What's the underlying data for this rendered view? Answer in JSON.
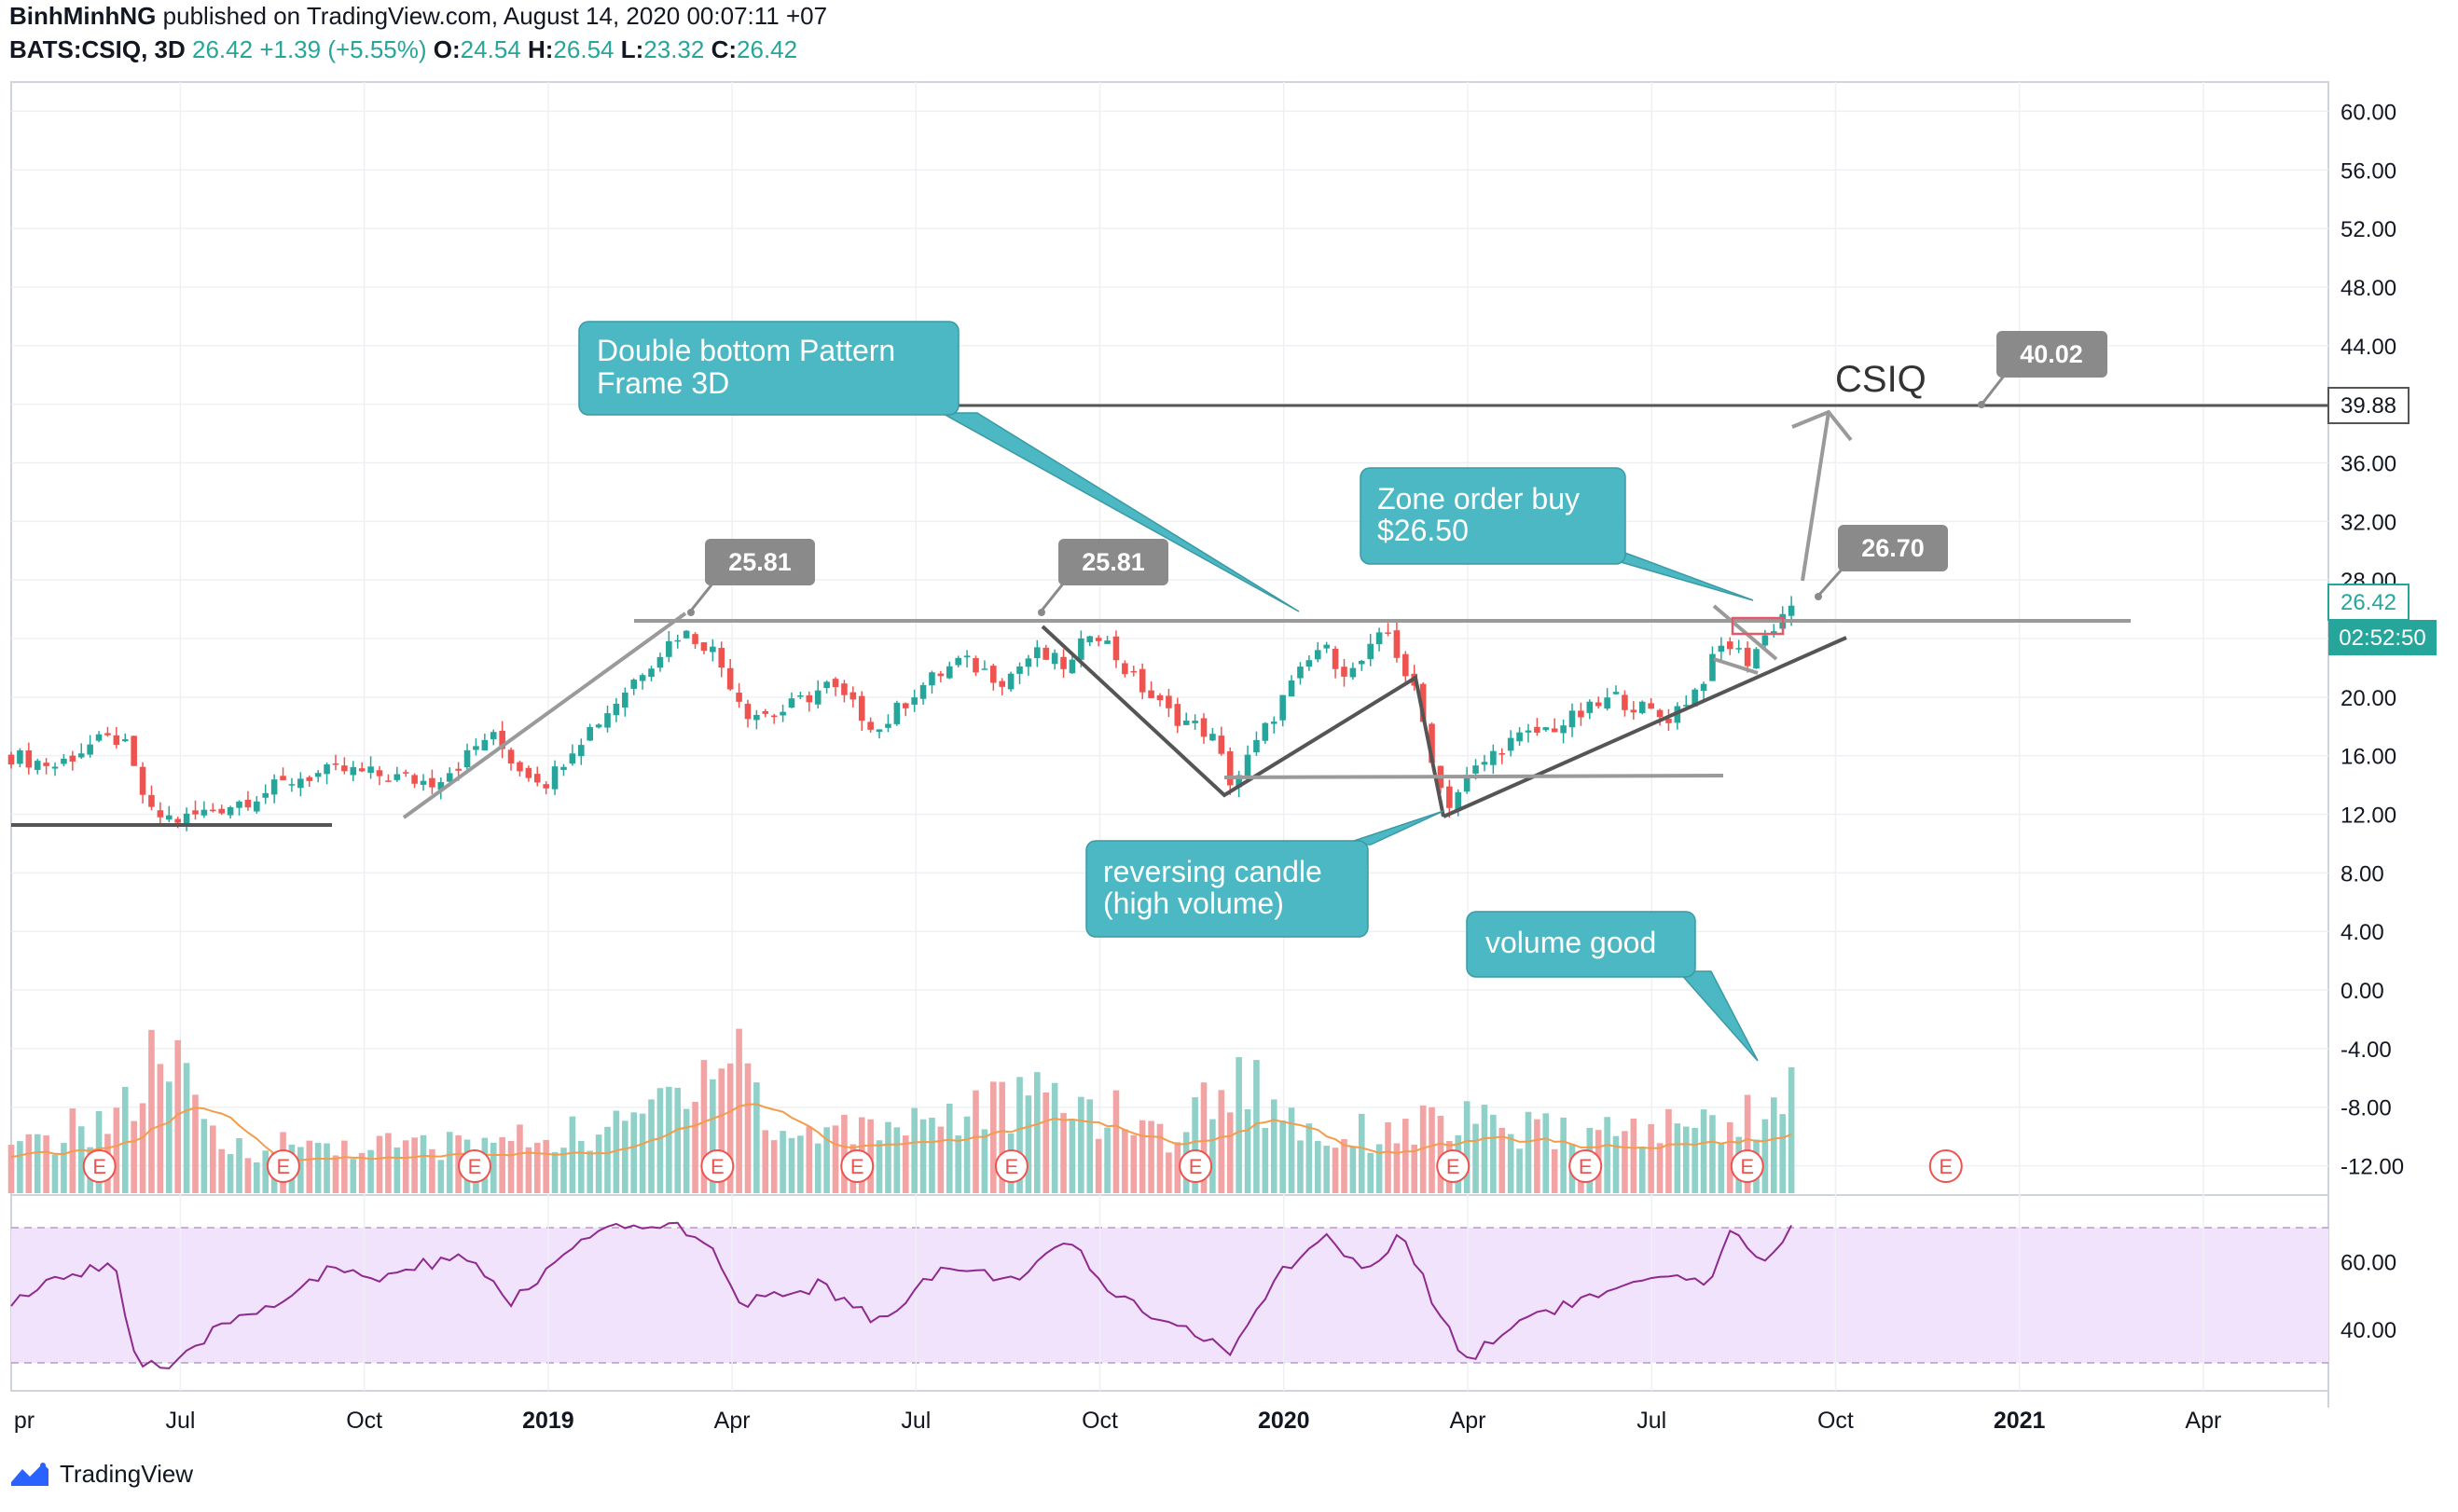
{
  "header": {
    "author": "BinhMinhNG",
    "published_on": "published on TradingView.com, August 14, 2020 00:07:11 +07",
    "symbol": "BATS:CSIQ, 3D",
    "last": "26.42",
    "change": "+1.39 (+5.55%)",
    "o_label": "O:",
    "o": "24.54",
    "h_label": "H:",
    "h": "26.54",
    "l_label": "L:",
    "l": "23.32",
    "c_label": "C:",
    "c": "26.42"
  },
  "brand": {
    "name": "TradingView"
  },
  "colors": {
    "up": "#26a69a",
    "down": "#ef5350",
    "vol_up": "#8fd0c9",
    "vol_down": "#f2a3a3",
    "vol_ma": "#f39c4a",
    "rsi_line": "#8e2a8e",
    "rsi_band": "#f1e3fb",
    "callout": "#4bb8c4",
    "price_label": "#8a8a8a",
    "pattern_line": "#555555",
    "level_line": "#9a9a9a",
    "earnings": "#ef5350"
  },
  "chart_data": {
    "type": "candlestick",
    "price_axis": {
      "ylim": [
        -14,
        62
      ],
      "ticks": [
        "60.00",
        "56.00",
        "52.00",
        "48.00",
        "44.00",
        "40.00",
        "36.00",
        "32.00",
        "28.00",
        "24.00",
        "20.00",
        "16.00",
        "12.00",
        "8.00",
        "4.00",
        "0.00",
        "-4.00",
        "-8.00",
        "-12.00"
      ]
    },
    "time_axis": {
      "labels": [
        "pr",
        "Jul",
        "Oct",
        "2019",
        "Apr",
        "Jul",
        "Oct",
        "2020",
        "Apr",
        "Jul",
        "Oct",
        "2021",
        "Apr"
      ],
      "bold": [
        "2019",
        "2020",
        "2021"
      ]
    },
    "price_path": [
      {
        "t": 2018.27,
        "p": 16.0
      },
      {
        "t": 2018.33,
        "p": 15.3
      },
      {
        "t": 2018.38,
        "p": 16.8
      },
      {
        "t": 2018.42,
        "p": 17.2
      },
      {
        "t": 2018.44,
        "p": 14.5
      },
      {
        "t": 2018.46,
        "p": 12.0
      },
      {
        "t": 2018.5,
        "p": 11.6
      },
      {
        "t": 2018.55,
        "p": 12.4
      },
      {
        "t": 2018.6,
        "p": 13.2
      },
      {
        "t": 2018.66,
        "p": 14.5
      },
      {
        "t": 2018.72,
        "p": 15.0
      },
      {
        "t": 2018.78,
        "p": 14.6
      },
      {
        "t": 2018.84,
        "p": 14.2
      },
      {
        "t": 2018.88,
        "p": 15.5
      },
      {
        "t": 2018.92,
        "p": 17.5
      },
      {
        "t": 2018.96,
        "p": 15.2
      },
      {
        "t": 2019.0,
        "p": 14.2
      },
      {
        "t": 2019.03,
        "p": 16.5
      },
      {
        "t": 2019.08,
        "p": 19.0
      },
      {
        "t": 2019.13,
        "p": 22.0
      },
      {
        "t": 2019.18,
        "p": 24.5
      },
      {
        "t": 2019.22,
        "p": 23.5
      },
      {
        "t": 2019.27,
        "p": 19.0
      },
      {
        "t": 2019.31,
        "p": 18.8
      },
      {
        "t": 2019.38,
        "p": 20.8
      },
      {
        "t": 2019.45,
        "p": 17.8
      },
      {
        "t": 2019.5,
        "p": 20.5
      },
      {
        "t": 2019.56,
        "p": 22.5
      },
      {
        "t": 2019.62,
        "p": 21.2
      },
      {
        "t": 2019.66,
        "p": 23.0
      },
      {
        "t": 2019.71,
        "p": 22.0
      },
      {
        "t": 2019.74,
        "p": 25.0
      },
      {
        "t": 2019.79,
        "p": 21.5
      },
      {
        "t": 2019.84,
        "p": 19.0
      },
      {
        "t": 2019.9,
        "p": 17.5
      },
      {
        "t": 2019.93,
        "p": 14.0
      },
      {
        "t": 2019.96,
        "p": 16.5
      },
      {
        "t": 2020.0,
        "p": 20.0
      },
      {
        "t": 2020.05,
        "p": 23.5
      },
      {
        "t": 2020.09,
        "p": 21.5
      },
      {
        "t": 2020.14,
        "p": 24.5
      },
      {
        "t": 2020.18,
        "p": 20.0
      },
      {
        "t": 2020.22,
        "p": 12.5
      },
      {
        "t": 2020.26,
        "p": 15.0
      },
      {
        "t": 2020.3,
        "p": 16.8
      },
      {
        "t": 2020.38,
        "p": 18.2
      },
      {
        "t": 2020.45,
        "p": 20.0
      },
      {
        "t": 2020.52,
        "p": 18.5
      },
      {
        "t": 2020.56,
        "p": 20.5
      },
      {
        "t": 2020.6,
        "p": 23.8
      },
      {
        "t": 2020.63,
        "p": 22.5
      },
      {
        "t": 2020.66,
        "p": 24.5
      },
      {
        "t": 2020.69,
        "p": 26.4
      }
    ],
    "volume_profile": [
      {
        "t": 2018.27,
        "v": 0.25
      },
      {
        "t": 2018.44,
        "v": 0.55
      },
      {
        "t": 2018.47,
        "v": 0.95
      },
      {
        "t": 2018.55,
        "v": 0.3
      },
      {
        "t": 2018.7,
        "v": 0.3
      },
      {
        "t": 2018.85,
        "v": 0.3
      },
      {
        "t": 2019.0,
        "v": 0.35
      },
      {
        "t": 2019.1,
        "v": 0.4
      },
      {
        "t": 2019.26,
        "v": 1.0
      },
      {
        "t": 2019.3,
        "v": 0.35
      },
      {
        "t": 2019.7,
        "v": 0.6
      },
      {
        "t": 2019.85,
        "v": 0.35
      },
      {
        "t": 2019.93,
        "v": 0.75
      },
      {
        "t": 2020.05,
        "v": 0.35
      },
      {
        "t": 2020.22,
        "v": 0.45
      },
      {
        "t": 2020.4,
        "v": 0.35
      },
      {
        "t": 2020.6,
        "v": 0.45
      },
      {
        "t": 2020.69,
        "v": 0.6
      }
    ],
    "earnings_markers": [
      {
        "t": 2018.39,
        "label": "E"
      },
      {
        "t": 2018.64,
        "label": "E"
      },
      {
        "t": 2018.9,
        "label": "E"
      },
      {
        "t": 2019.23,
        "label": "E"
      },
      {
        "t": 2019.42,
        "label": "E"
      },
      {
        "t": 2019.63,
        "label": "E"
      },
      {
        "t": 2019.88,
        "label": "E"
      },
      {
        "t": 2020.23,
        "label": "E"
      },
      {
        "t": 2020.41,
        "label": "E"
      },
      {
        "t": 2020.63,
        "label": "E"
      },
      {
        "t": 2020.9,
        "label": "E"
      }
    ],
    "rsi": {
      "ticks": [
        "60.00",
        "40.00"
      ],
      "band": [
        30,
        70
      ],
      "path": [
        {
          "t": 2018.27,
          "v": 48
        },
        {
          "t": 2018.36,
          "v": 57
        },
        {
          "t": 2018.41,
          "v": 60
        },
        {
          "t": 2018.44,
          "v": 30
        },
        {
          "t": 2018.49,
          "v": 28
        },
        {
          "t": 2018.56,
          "v": 42
        },
        {
          "t": 2018.63,
          "v": 48
        },
        {
          "t": 2018.7,
          "v": 57
        },
        {
          "t": 2018.77,
          "v": 55
        },
        {
          "t": 2018.88,
          "v": 62
        },
        {
          "t": 2018.95,
          "v": 48
        },
        {
          "t": 2019.04,
          "v": 65
        },
        {
          "t": 2019.1,
          "v": 70
        },
        {
          "t": 2019.16,
          "v": 71
        },
        {
          "t": 2019.21,
          "v": 68
        },
        {
          "t": 2019.26,
          "v": 47
        },
        {
          "t": 2019.37,
          "v": 53
        },
        {
          "t": 2019.45,
          "v": 42
        },
        {
          "t": 2019.53,
          "v": 58
        },
        {
          "t": 2019.63,
          "v": 55
        },
        {
          "t": 2019.71,
          "v": 65
        },
        {
          "t": 2019.77,
          "v": 50
        },
        {
          "t": 2019.85,
          "v": 42
        },
        {
          "t": 2019.93,
          "v": 33
        },
        {
          "t": 2020.0,
          "v": 58
        },
        {
          "t": 2020.06,
          "v": 68
        },
        {
          "t": 2020.11,
          "v": 56
        },
        {
          "t": 2020.16,
          "v": 68
        },
        {
          "t": 2020.21,
          "v": 45
        },
        {
          "t": 2020.25,
          "v": 31
        },
        {
          "t": 2020.33,
          "v": 44
        },
        {
          "t": 2020.43,
          "v": 50
        },
        {
          "t": 2020.52,
          "v": 55
        },
        {
          "t": 2020.58,
          "v": 53
        },
        {
          "t": 2020.61,
          "v": 69
        },
        {
          "t": 2020.66,
          "v": 60
        },
        {
          "t": 2020.69,
          "v": 70
        }
      ]
    }
  },
  "annotations": {
    "callout_double_bottom_1": "Double bottom Pattern",
    "callout_double_bottom_2": "Frame 3D",
    "callout_zone_1": "Zone order buy",
    "callout_zone_2": "$26.50",
    "callout_reversing_1": "reversing candle",
    "callout_reversing_2": "(high volume)",
    "callout_volume": "volume good",
    "label_peak_left": "25.81",
    "label_peak_right": "25.81",
    "label_target": "40.02",
    "label_entry": "26.70",
    "ticker_text": "CSIQ",
    "axis_level": "39.88",
    "axis_last": "26.42",
    "axis_countdown": "02:52:50"
  }
}
